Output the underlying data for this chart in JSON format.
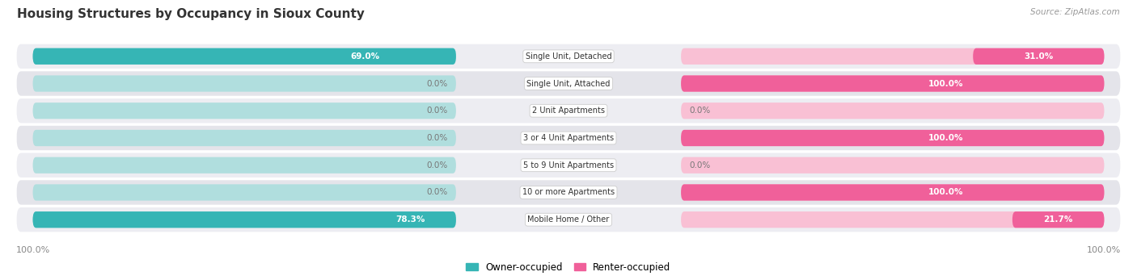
{
  "title": "Housing Structures by Occupancy in Sioux County",
  "source": "Source: ZipAtlas.com",
  "categories": [
    "Single Unit, Detached",
    "Single Unit, Attached",
    "2 Unit Apartments",
    "3 or 4 Unit Apartments",
    "5 to 9 Unit Apartments",
    "10 or more Apartments",
    "Mobile Home / Other"
  ],
  "owner_pct": [
    69.0,
    0.0,
    0.0,
    0.0,
    0.0,
    0.0,
    78.3
  ],
  "renter_pct": [
    31.0,
    100.0,
    0.0,
    100.0,
    0.0,
    100.0,
    21.7
  ],
  "owner_color": "#36b5b5",
  "renter_color": "#f0609a",
  "owner_color_light": "#b0dede",
  "renter_color_light": "#f9c0d4",
  "row_bg_even": "#ededf2",
  "row_bg_odd": "#e4e4ea",
  "title_color": "#333333",
  "source_color": "#999999",
  "value_color_white": "#ffffff",
  "value_color_dark": "#777777",
  "background_color": "#ffffff",
  "legend_owner": "Owner-occupied",
  "legend_renter": "Renter-occupied"
}
